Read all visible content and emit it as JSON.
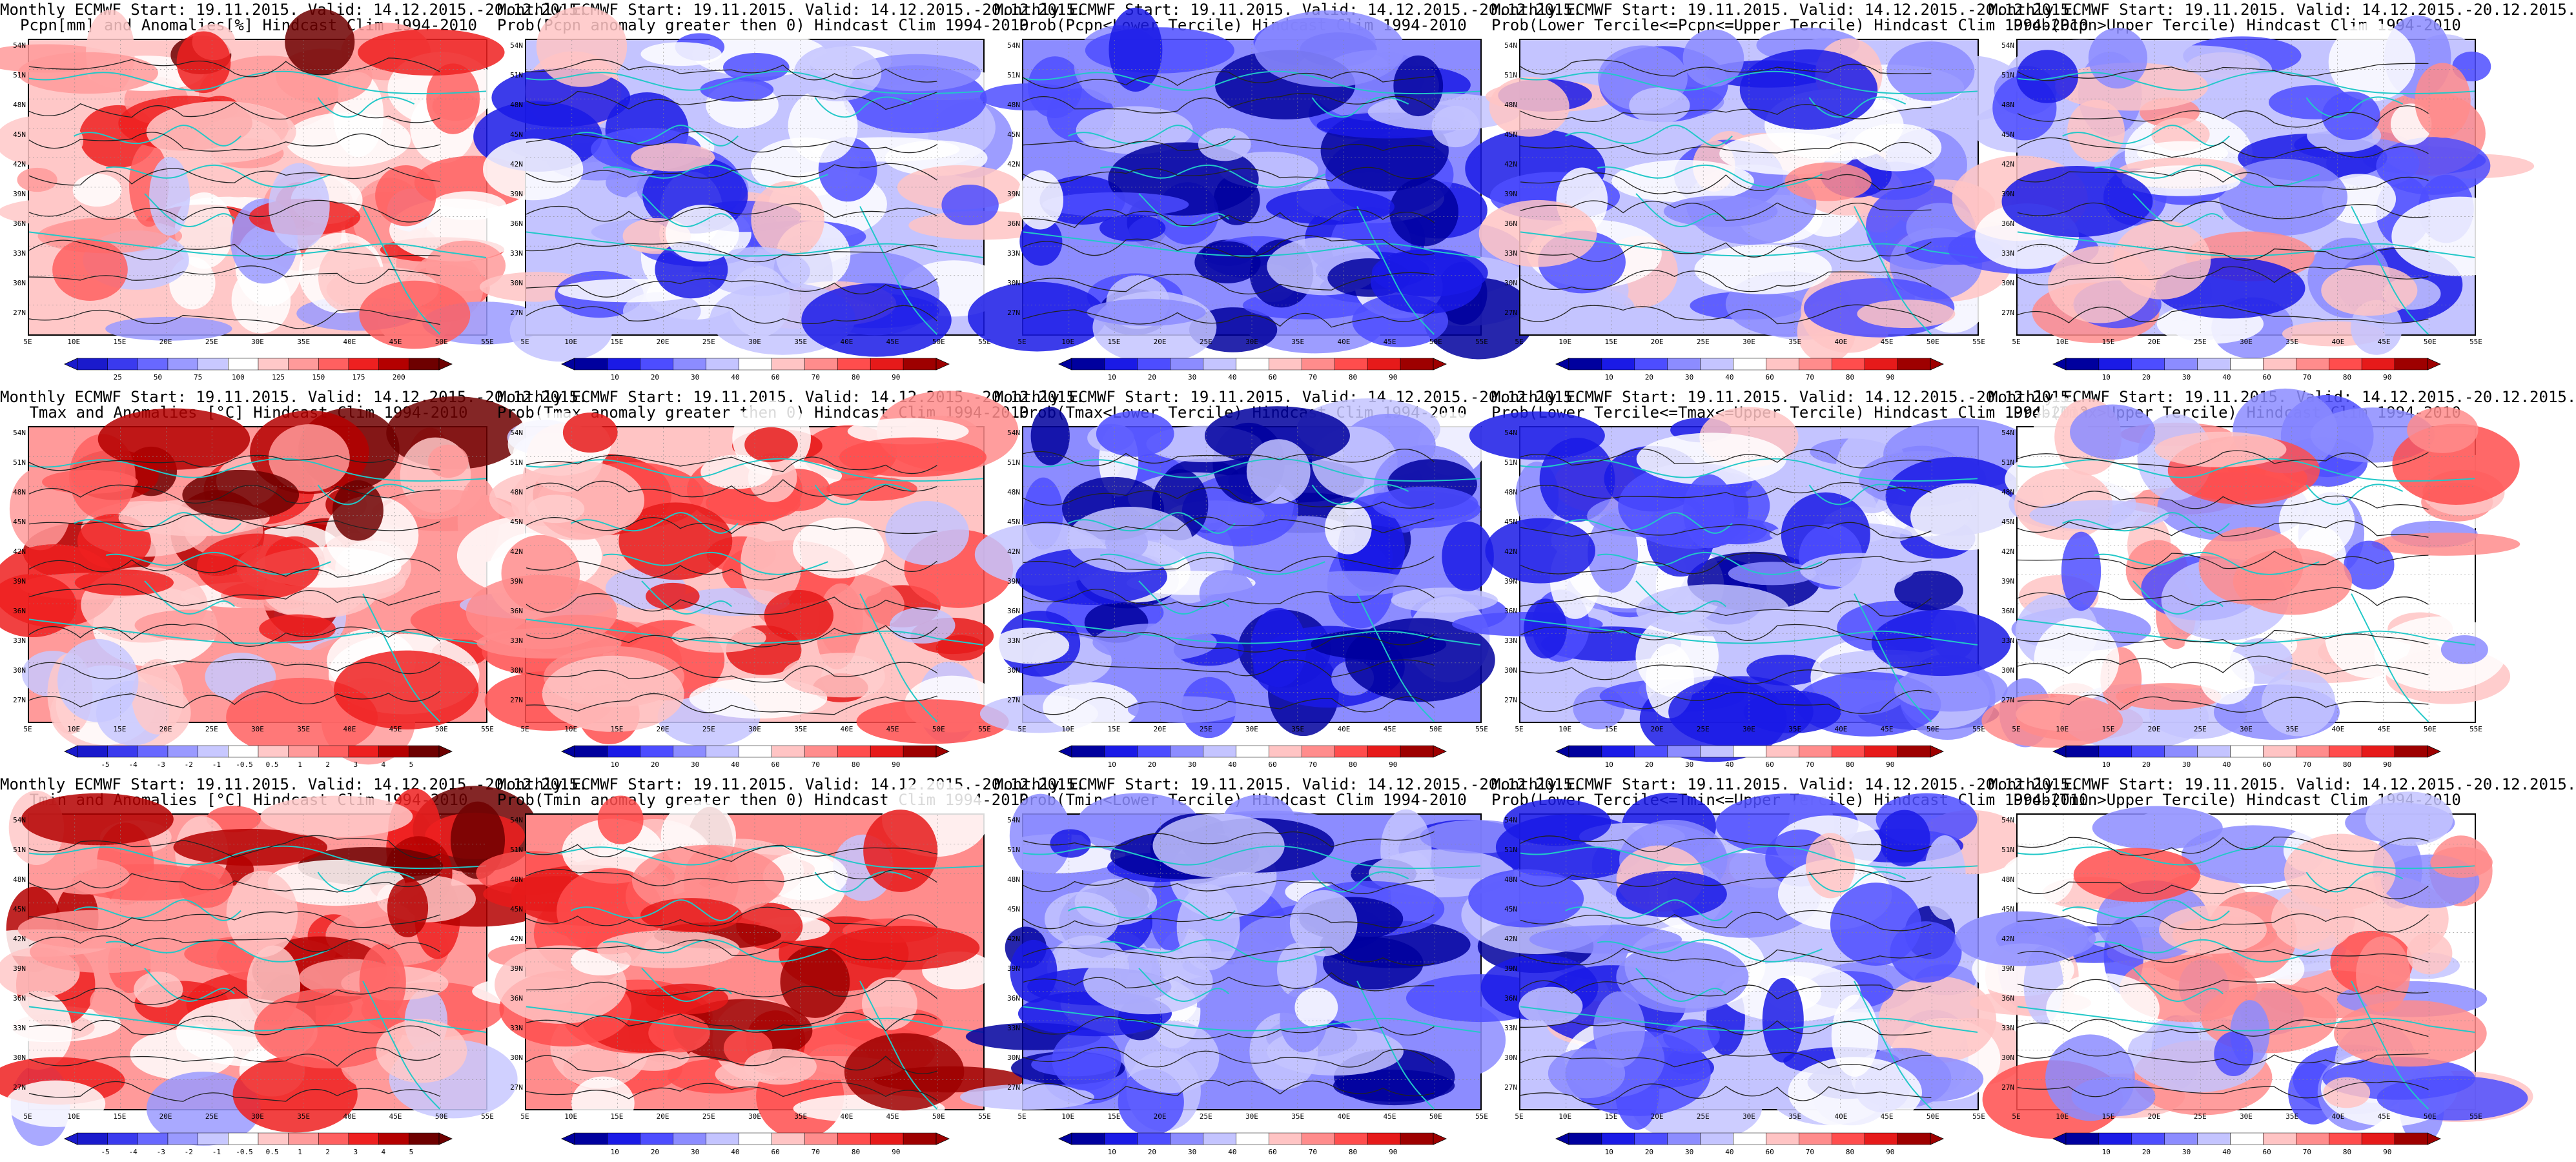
{
  "lat_ticks": [
    "54N",
    "51N",
    "48N",
    "45N",
    "42N",
    "39N",
    "36N",
    "33N",
    "30N",
    "27N"
  ],
  "lon_ticks": [
    "5E",
    "10E",
    "15E",
    "20E",
    "25E",
    "30E",
    "35E",
    "40E",
    "45E",
    "50E",
    "55E"
  ],
  "palettes": {
    "anom": [
      "#1a1acc",
      "#3a3aee",
      "#6868ff",
      "#9a9aff",
      "#c8c8ff",
      "#ffffff",
      "#ffc8c8",
      "#ff9a9a",
      "#ff6060",
      "#ee2020",
      "#b40000",
      "#6e0000"
    ],
    "prob": [
      "#00009e",
      "#1a1ae6",
      "#4d4dff",
      "#8c8cff",
      "#c4c4ff",
      "#ffffff",
      "#ffc4c4",
      "#ff8c8c",
      "#ff4d4d",
      "#e61a1a",
      "#9e0000"
    ]
  },
  "panels": [
    {
      "id": "pcpn-anom",
      "title1": "Monthly ECMWF Start: 19.11.2015. Valid: 14.12.2015.-20.12.2015.",
      "title2": "Pcpn[mm] and Anomalies[%] Hindcast Clim 1994-2010",
      "palette": "anom",
      "ticks": [
        "25",
        "50",
        "75",
        "100",
        "125",
        "150",
        "175",
        "200"
      ],
      "bias": 0.15,
      "seed": 11
    },
    {
      "id": "prob-pcpn-gt0",
      "title1": "Monthly ECMWF Start: 19.11.2015. Valid: 14.12.2015.-20.12.2015.",
      "title2": "Prob(Pcpn anomaly greater then 0) Hindcast Clim 1994-2010",
      "palette": "prob",
      "ticks": [
        "10",
        "20",
        "30",
        "40",
        "60",
        "70",
        "80",
        "90"
      ],
      "bias": -0.35,
      "seed": 23
    },
    {
      "id": "prob-pcpn-lower",
      "title1": "Monthly ECMWF Start: 19.11.2015. Valid: 14.12.2015.-20.12.2015.",
      "title2": "Prob(Pcpn<Lower Tercile) Hindcast Clim 1994-2010",
      "palette": "prob",
      "ticks": [
        "10",
        "20",
        "30",
        "40",
        "60",
        "70",
        "80",
        "90"
      ],
      "bias": -0.7,
      "seed": 37
    },
    {
      "id": "prob-pcpn-middle",
      "title1": "Monthly ECMWF Start: 19.11.2015. Valid: 14.12.2015.-20.12.2015.",
      "title2": "Prob(Lower Tercile<=Pcpn<=Upper Tercile) Hindcast Clim 1994-2010",
      "palette": "prob",
      "ticks": [
        "10",
        "20",
        "30",
        "40",
        "60",
        "70",
        "80",
        "90"
      ],
      "bias": -0.3,
      "seed": 41
    },
    {
      "id": "prob-pcpn-upper",
      "title1": "Monthly ECMWF Start: 19.11.2015. Valid: 14.12.2015.-20.12.2015.",
      "title2": "Prob(Pcpn>Upper Tercile) Hindcast Clim 1994-2010",
      "palette": "prob",
      "ticks": [
        "10",
        "20",
        "30",
        "40",
        "60",
        "70",
        "80",
        "90"
      ],
      "bias": -0.3,
      "seed": 53
    },
    {
      "id": "tmax-anom",
      "title1": "Monthly ECMWF Start: 19.11.2015. Valid: 14.12.2015.-20.12.2015.",
      "title2": "Tmax and Anomalies [°C] Hindcast Clim 1994-2010",
      "palette": "anom",
      "ticks": [
        "-5",
        "-4",
        "-3",
        "-2",
        "-1",
        "-0.5",
        "0.5",
        "1",
        "2",
        "3",
        "4",
        "5"
      ],
      "bias": 0.3,
      "seed": 61
    },
    {
      "id": "prob-tmax-gt0",
      "title1": "Monthly ECMWF Start: 19.11.2015. Valid: 14.12.2015.-20.12.2015.",
      "title2": "Prob(Tmax anomaly greater then 0) Hindcast Clim 1994-2010",
      "palette": "prob",
      "ticks": [
        "10",
        "20",
        "30",
        "40",
        "60",
        "70",
        "80",
        "90"
      ],
      "bias": 0.45,
      "seed": 67
    },
    {
      "id": "prob-tmax-lower",
      "title1": "Monthly ECMWF Start: 19.11.2015. Valid: 14.12.2015.-20.12.2015.",
      "title2": "Prob(Tmax<Lower Tercile) Hindcast Clim 1994-2010",
      "palette": "prob",
      "ticks": [
        "10",
        "20",
        "30",
        "40",
        "60",
        "70",
        "80",
        "90"
      ],
      "bias": -0.65,
      "seed": 71
    },
    {
      "id": "prob-tmax-middle",
      "title1": "Monthly ECMWF Start: 19.11.2015. Valid: 14.12.2015.-20.12.2015.",
      "title2": "Prob(Lower Tercile<=Tmax<=Upper Tercile) Hindcast Clim 1994-2010",
      "palette": "prob",
      "ticks": [
        "10",
        "20",
        "30",
        "40",
        "60",
        "70",
        "80",
        "90"
      ],
      "bias": -0.5,
      "seed": 79
    },
    {
      "id": "prob-tmax-upper",
      "title1": "Monthly ECMWF Start: 19.11.2015. Valid: 14.12.2015.-20.12.2015.",
      "title2": "Prob(Tmax>Upper Tercile) Hindcast Clim 1994-2010",
      "palette": "prob",
      "ticks": [
        "10",
        "20",
        "30",
        "40",
        "60",
        "70",
        "80",
        "90"
      ],
      "bias": 0.0,
      "seed": 83
    },
    {
      "id": "tmin-anom",
      "title1": "Monthly ECMWF Start: 19.11.2015. Valid: 14.12.2015.-20.12.2015.",
      "title2": "Tmin and Anomalies [°C] Hindcast Clim 1994-2010",
      "palette": "anom",
      "ticks": [
        "-5",
        "-4",
        "-3",
        "-2",
        "-1",
        "-0.5",
        "0.5",
        "1",
        "2",
        "3",
        "4",
        "5"
      ],
      "bias": 0.35,
      "seed": 89
    },
    {
      "id": "prob-tmin-gt0",
      "title1": "Monthly ECMWF Start: 19.11.2015. Valid: 14.12.2015.-20.12.2015.",
      "title2": "Prob(Tmin anomaly greater then 0) Hindcast Clim 1994-2010",
      "palette": "prob",
      "ticks": [
        "10",
        "20",
        "30",
        "40",
        "60",
        "70",
        "80",
        "90"
      ],
      "bias": 0.5,
      "seed": 97
    },
    {
      "id": "prob-tmin-lower",
      "title1": "Monthly ECMWF Start: 19.11.2015. Valid: 14.12.2015.-20.12.2015.",
      "title2": "Prob(Tmin<Lower Tercile) Hindcast Clim 1994-2010",
      "palette": "prob",
      "ticks": [
        "10",
        "20",
        "30",
        "40",
        "60",
        "70",
        "80",
        "90"
      ],
      "bias": -0.7,
      "seed": 101
    },
    {
      "id": "prob-tmin-middle",
      "title1": "Monthly ECMWF Start: 19.11.2015. Valid: 14.12.2015.-20.12.2015.",
      "title2": "Prob(Lower Tercile<=Tmin<=Upper Tercile) Hindcast Clim 1994-2010",
      "palette": "prob",
      "ticks": [
        "10",
        "20",
        "30",
        "40",
        "60",
        "70",
        "80",
        "90"
      ],
      "bias": -0.45,
      "seed": 107
    },
    {
      "id": "prob-tmin-upper",
      "title1": "Monthly ECMWF Start: 19.11.2015. Valid: 14.12.2015.-20.12.2015.",
      "title2": "Prob(Tmin>Upper Tercile) Hindcast Clim 1994-2010",
      "palette": "prob",
      "ticks": [
        "10",
        "20",
        "30",
        "40",
        "60",
        "70",
        "80",
        "90"
      ],
      "bias": -0.05,
      "seed": 113
    }
  ]
}
